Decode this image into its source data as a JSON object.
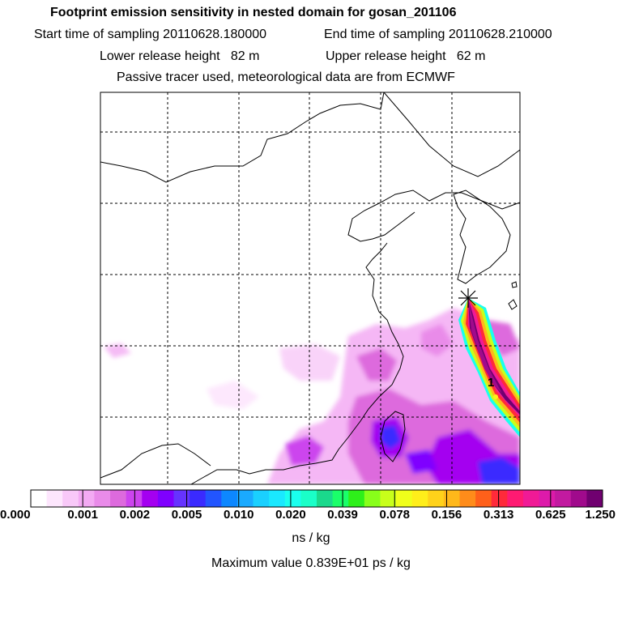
{
  "header": {
    "title": "Footprint emission sensitivity in nested domain for gosan_201106",
    "start": "Start time of sampling 20110628.180000",
    "end": "End time of sampling 20110628.210000",
    "lower": "Lower release height   82 m",
    "upper": "Upper release height   62 m",
    "note": "Passive tracer used, meteorological data are from ECMWF"
  },
  "colorbar": {
    "colors": [
      "#ffffff",
      "#fde6fd",
      "#f8c8f8",
      "#f3aaf3",
      "#e98be9",
      "#dd6add",
      "#cc44ee",
      "#a400f0",
      "#7f00ff",
      "#6633ff",
      "#3a2aff",
      "#2255ff",
      "#0d87ff",
      "#1aaaff",
      "#1ad0ff",
      "#1ae8ff",
      "#1affee",
      "#1affc8",
      "#1ad98c",
      "#1aff6a",
      "#2ef01a",
      "#88ff1a",
      "#c8ff1a",
      "#f0ff1a",
      "#ffee1a",
      "#ffd21a",
      "#ffb81a",
      "#ff8c1a",
      "#ff601a",
      "#ff2a3a",
      "#ff1a72",
      "#f01a96",
      "#dd1aaa",
      "#c21aa0",
      "#a00a8c",
      "#700070"
    ],
    "ticks": [
      "0.000",
      "0.001",
      "0.002",
      "0.005",
      "0.010",
      "0.020",
      "0.039",
      "0.078",
      "0.156",
      "0.313",
      "0.625",
      "1.250"
    ]
  },
  "unit_label": "ns / kg",
  "max_label": "Maximum value  0.839E+01 ps / kg",
  "marker": {
    "label": "1"
  }
}
